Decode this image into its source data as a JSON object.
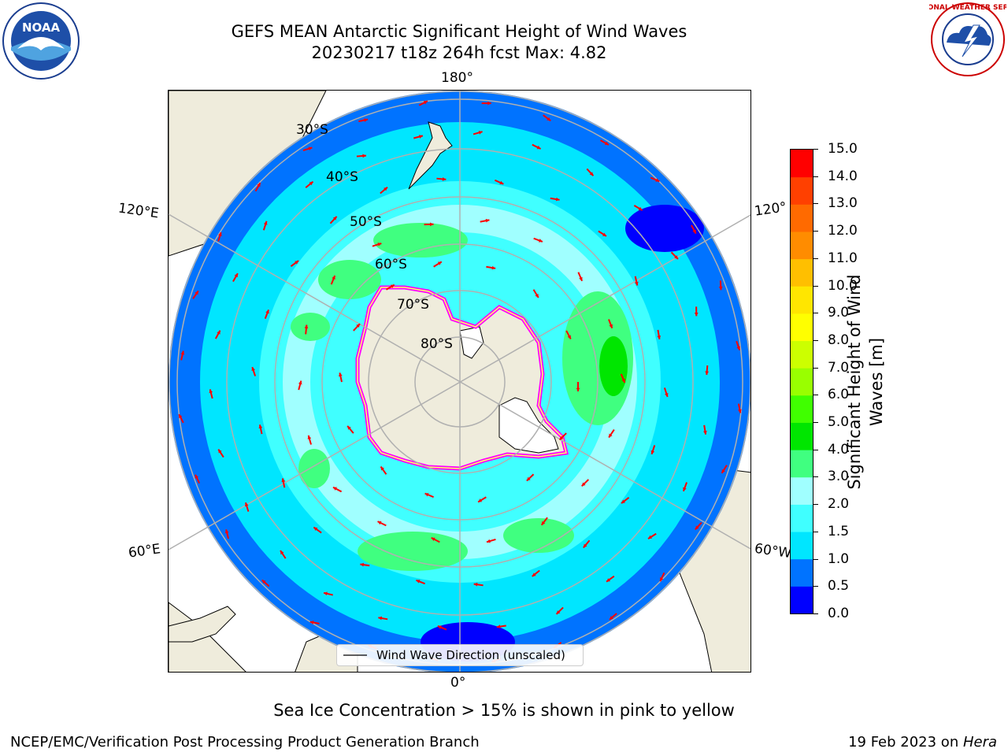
{
  "header": {
    "title_line1": "GEFS MEAN Antarctic Significant Height of Wind Waves",
    "title_line2": "20230217 t18z 264h fcst   Max: 4.82"
  },
  "logos": {
    "noaa_text": "NOAA",
    "nws_text": "NATIONAL WEATHER SERVICE"
  },
  "map": {
    "projection": "south-polar-stereographic",
    "longitude_labels": {
      "top": "180°",
      "bottom": "0°",
      "upper_left": "120°E",
      "lower_left": "60°E",
      "upper_right": "120°",
      "lower_right": "60°W"
    },
    "latitude_labels": [
      "30°S",
      "40°S",
      "50°S",
      "60°S",
      "70°S",
      "80°S"
    ],
    "gridline_color": "#b0b0b0",
    "arrow_color": "#ff0000",
    "land_color": "#efecdc",
    "sea_ice_colors": [
      "#ff00ff",
      "#ffff66"
    ]
  },
  "legend": {
    "label": "Wind Wave Direction (unscaled)"
  },
  "colorbar": {
    "label": "Significant Height of Wind Waves [m]",
    "label_line1": "Significant Height of Wind",
    "label_line2": "Waves [m]",
    "ticks": [
      "0.0",
      "0.5",
      "1.0",
      "1.5",
      "2.0",
      "3.0",
      "4.0",
      "5.0",
      "6.0",
      "7.0",
      "8.0",
      "9.0",
      "10.0",
      "11.0",
      "12.0",
      "13.0",
      "14.0",
      "15.0"
    ],
    "colors": [
      "#0000ff",
      "#0073ff",
      "#00e6ff",
      "#40ffff",
      "#a0ffff",
      "#40ff80",
      "#00e600",
      "#40ff00",
      "#99ff00",
      "#ccff00",
      "#ffff00",
      "#ffe600",
      "#ffbf00",
      "#ff8c00",
      "#ff6a00",
      "#ff4000",
      "#ff0000"
    ]
  },
  "caption": "Sea Ice Concentration > 15% is shown in pink to yellow",
  "footer": {
    "left": "NCEP/EMC/Verification Post Processing Product Generation Branch",
    "right_date": "19 Feb 2023 on ",
    "right_host": "Hera"
  }
}
